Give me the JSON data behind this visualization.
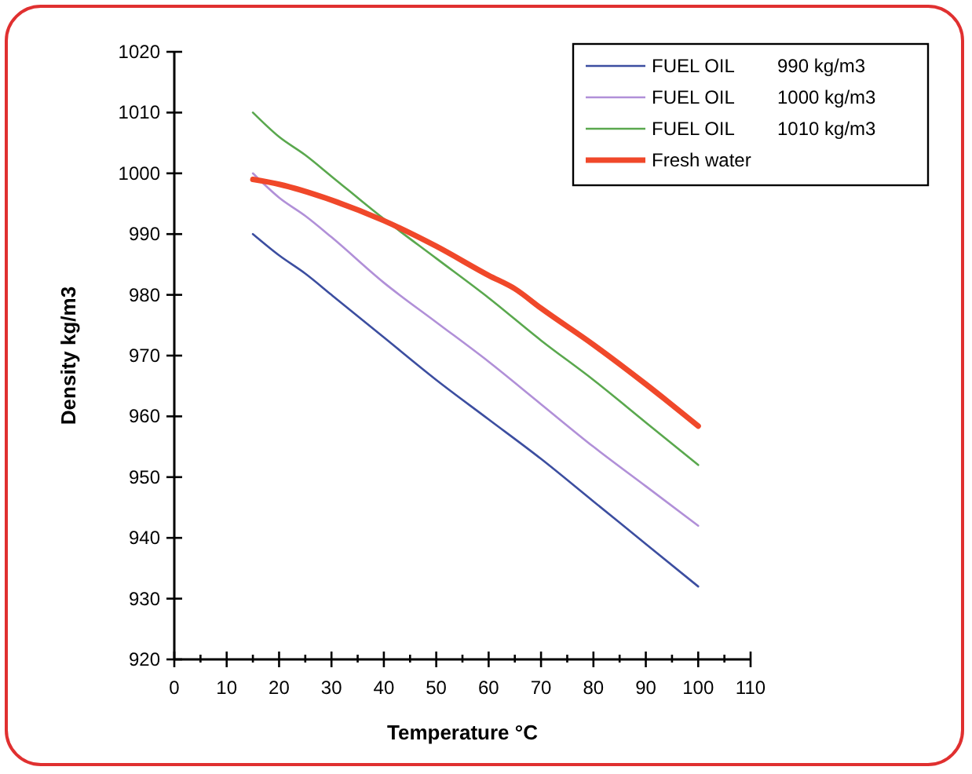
{
  "chart_data": {
    "type": "line",
    "xlabel": "Temperature °C",
    "ylabel": "Density kg/m3",
    "xlim": [
      0,
      110
    ],
    "ylim": [
      920,
      1020
    ],
    "xticks": [
      0,
      {
        "value": 5,
        "label": null
      },
      10,
      {
        "value": 15,
        "label": null
      },
      20,
      {
        "value": 25,
        "label": null
      },
      30,
      {
        "value": 35,
        "label": null
      },
      40,
      {
        "value": 45,
        "label": null
      },
      50,
      {
        "value": 55,
        "label": null
      },
      60,
      {
        "value": 65,
        "label": null
      },
      70,
      {
        "value": 75,
        "label": null
      },
      80,
      {
        "value": 85,
        "label": null
      },
      90,
      {
        "value": 95,
        "label": null
      },
      100,
      {
        "value": 105,
        "label": null
      },
      110
    ],
    "yticks": [
      920,
      930,
      940,
      950,
      960,
      970,
      980,
      990,
      1000,
      1010,
      1020
    ],
    "grid": false,
    "legend": "top right",
    "marker": "none",
    "line_style": "solid",
    "series": [
      {
        "name": "FUEL OIL    990 kg/m3",
        "color": "#3c4ea0",
        "x": [
          15,
          20,
          25,
          30,
          40,
          50,
          60,
          70,
          80,
          90,
          100
        ],
        "values": [
          990,
          986.5,
          983.5,
          980,
          973,
          966,
          959.5,
          953,
          946,
          939,
          932
        ]
      },
      {
        "name": "FUEL OIL    1000 kg/m3",
        "color": "#b190d8",
        "x": [
          15,
          20,
          25,
          30,
          40,
          50,
          60,
          70,
          80,
          90,
          100
        ],
        "values": [
          1000,
          996,
          993,
          989.5,
          982,
          975.5,
          969,
          962,
          955,
          948.5,
          942
        ]
      },
      {
        "name": "FUEL OIL    1010 kg/m3",
        "color": "#5aa84e",
        "x": [
          15,
          20,
          25,
          30,
          40,
          50,
          60,
          70,
          80,
          90,
          100
        ],
        "values": [
          1010,
          1006,
          1003,
          999.5,
          992.5,
          986,
          979.5,
          972.5,
          966,
          959,
          952
        ]
      },
      {
        "name": "Fresh water",
        "color": "#f0482a",
        "x": [
          15,
          20,
          30,
          40,
          50,
          60,
          65,
          70,
          80,
          90,
          100
        ],
        "values": [
          999,
          998.2,
          995.6,
          992.2,
          988,
          983.2,
          981,
          977.8,
          971.8,
          965.3,
          958.4
        ]
      }
    ]
  }
}
